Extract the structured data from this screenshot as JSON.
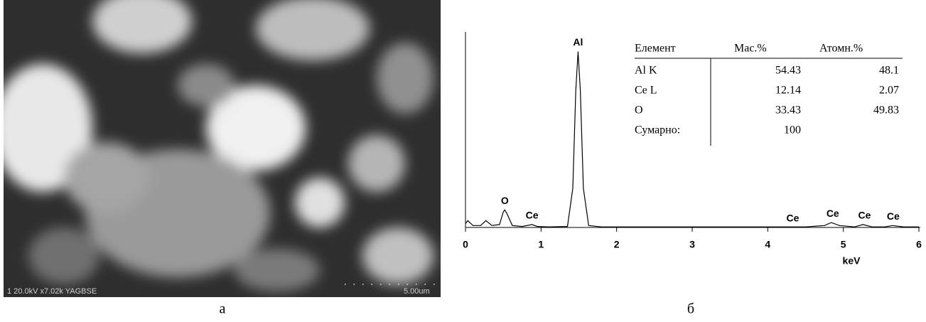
{
  "figure_a": {
    "info": "1 20.0kV x7.02k YAGBSE",
    "scale": "5.00um",
    "caption": "а"
  },
  "chart_data": {
    "type": "line",
    "x": [
      0,
      0.03,
      0.1,
      0.2,
      0.27,
      0.35,
      0.45,
      0.5,
      0.52,
      0.55,
      0.62,
      0.75,
      0.88,
      0.95,
      1.1,
      1.35,
      1.42,
      1.46,
      1.49,
      1.52,
      1.56,
      1.63,
      1.8,
      2.5,
      3.5,
      4.5,
      4.75,
      4.84,
      4.95,
      5.15,
      5.26,
      5.38,
      5.55,
      5.65,
      5.8,
      6
    ],
    "values": [
      2,
      3.5,
      1,
      1,
      3.5,
      1,
      1.5,
      8,
      9,
      7,
      1,
      0.5,
      1.5,
      0.5,
      0.3,
      0.5,
      20,
      70,
      90,
      70,
      20,
      1,
      0.3,
      0.3,
      0.3,
      0.3,
      1,
      2.5,
      1,
      0.3,
      1.5,
      0.3,
      0.3,
      1,
      0.3,
      0.3
    ],
    "color": "#000000",
    "xlim": [
      0,
      6
    ],
    "xticks": [
      0,
      1,
      2,
      3,
      4,
      5,
      6
    ],
    "ylim": [
      0,
      100
    ],
    "x_label": "keV",
    "annotations": [
      {
        "text": "Al",
        "x": 1.49
      },
      {
        "text": "O",
        "x": 0.52
      },
      {
        "text": "Ce",
        "x": 0.88
      },
      {
        "text": "Ce",
        "x": 4.33
      },
      {
        "text": "Ce",
        "x": 4.86
      },
      {
        "text": "Ce",
        "x": 5.28
      },
      {
        "text": "Ce",
        "x": 5.66
      }
    ],
    "caption": "б"
  },
  "table": {
    "header": [
      "Елемент",
      "Мас.%",
      "Атомн.%"
    ],
    "rows": [
      [
        "Al K",
        "54.43",
        "48.1"
      ],
      [
        "Ce L",
        "12.14",
        "2.07"
      ],
      [
        "O",
        "33.43",
        "49.83"
      ],
      [
        "Сумарно:",
        "100",
        null
      ]
    ]
  }
}
